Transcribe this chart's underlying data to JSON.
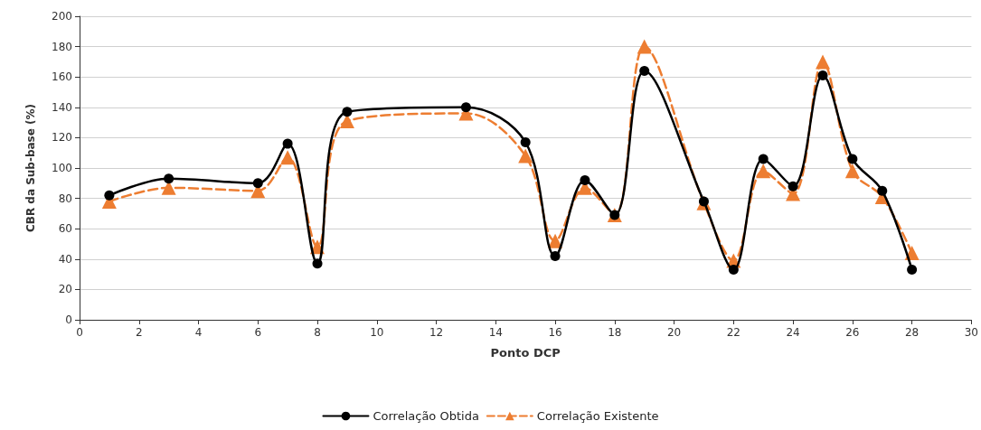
{
  "chart_data": {
    "type": "line",
    "xlabel": "Ponto DCP",
    "ylabel": "CBR da Sub-base (%)",
    "x": [
      1,
      3,
      6,
      7,
      8,
      9,
      13,
      15,
      16,
      17,
      18,
      19,
      21,
      22,
      23,
      24,
      25,
      26,
      27,
      28
    ],
    "series": [
      {
        "name": "Correlação Obtida",
        "color": "#000000",
        "marker": "circle",
        "line_style": "solid",
        "values": [
          82,
          93,
          90,
          116,
          37,
          137,
          140,
          117,
          42,
          92,
          69,
          164,
          78,
          33,
          106,
          88,
          161,
          106,
          85,
          33
        ]
      },
      {
        "name": "Correlação Existente",
        "color": "#ed7d31",
        "marker": "triangle",
        "line_style": "dashed",
        "values": [
          78,
          87,
          85,
          107,
          48,
          131,
          136,
          108,
          52,
          87,
          69,
          180,
          77,
          39,
          98,
          83,
          170,
          98,
          81,
          44
        ]
      }
    ],
    "xlim": [
      0,
      30
    ],
    "xticks": [
      0,
      2,
      4,
      6,
      8,
      10,
      12,
      14,
      16,
      18,
      20,
      22,
      24,
      26,
      28,
      30
    ],
    "ylim": [
      0,
      200
    ],
    "yticks": [
      0,
      20,
      40,
      60,
      80,
      100,
      120,
      140,
      160,
      180,
      200
    ],
    "grid": "y",
    "legend": "bottom"
  }
}
